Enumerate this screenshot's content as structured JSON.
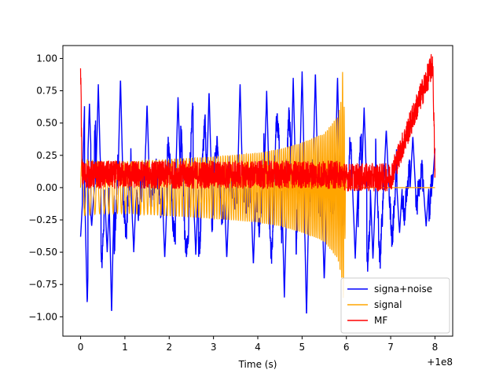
{
  "chart_data": {
    "type": "line",
    "title": "",
    "xlabel": "Time (s)",
    "ylabel": "",
    "x_offset_text": "+1e8",
    "xlim": [
      -0.4,
      8.4
    ],
    "ylim": [
      -1.15,
      1.1
    ],
    "xticks": [
      0,
      1,
      2,
      3,
      4,
      5,
      6,
      7,
      8
    ],
    "xtick_labels": [
      "0",
      "1",
      "2",
      "3",
      "4",
      "5",
      "6",
      "7",
      "8"
    ],
    "yticks": [
      -1.0,
      -0.75,
      -0.5,
      -0.25,
      0.0,
      0.25,
      0.5,
      0.75,
      1.0
    ],
    "ytick_labels": [
      "−1.00",
      "−0.75",
      "−0.50",
      "−0.25",
      "0.00",
      "0.25",
      "0.50",
      "0.75",
      "1.00"
    ],
    "legend": {
      "position": "lower-right"
    },
    "series": [
      {
        "name": "signa+noise",
        "color": "#0000ff",
        "description_points": {
          "x": [
            0.0,
            0.1,
            0.15,
            0.2,
            0.25,
            0.4,
            0.6,
            0.7,
            0.9,
            1.2,
            1.5,
            1.9,
            2.2,
            2.6,
            2.9,
            3.3,
            3.6,
            3.9,
            4.2,
            4.6,
            4.8,
            5.0,
            5.1,
            5.3,
            5.5,
            5.8,
            6.0,
            6.2,
            6.4,
            6.6,
            6.9,
            7.2,
            7.5,
            7.8,
            8.0
          ],
          "y": [
            -0.38,
            0.8,
            -0.9,
            0.65,
            -0.3,
            0.8,
            -0.5,
            -0.98,
            0.85,
            -0.5,
            0.65,
            -0.55,
            0.7,
            -0.52,
            0.75,
            -0.55,
            0.8,
            -0.6,
            0.75,
            -0.85,
            0.85,
            0.9,
            -1.0,
            0.9,
            -0.72,
            0.85,
            0.1,
            -0.55,
            0.62,
            -0.55,
            0.45,
            -0.35,
            0.4,
            -0.3,
            0.3
          ]
        }
      },
      {
        "name": "signal",
        "color": "#ffa500",
        "envelope": {
          "x": [
            0.0,
            0.5,
            1.0,
            2.0,
            3.0,
            4.0,
            4.5,
            5.0,
            5.5,
            5.8,
            5.9,
            5.92,
            6.0,
            8.0
          ],
          "y_abs": [
            0.22,
            0.2,
            0.2,
            0.22,
            0.24,
            0.27,
            0.3,
            0.35,
            0.42,
            0.55,
            0.72,
            1.0,
            0.0,
            0.0
          ]
        }
      },
      {
        "name": "MF",
        "color": "#ff0000",
        "description_points": {
          "x": [
            0.0,
            0.03,
            0.2,
            1.0,
            2.0,
            3.0,
            4.0,
            5.0,
            5.9,
            6.0,
            7.0,
            7.95,
            8.0
          ],
          "y": [
            1.0,
            0.1,
            0.1,
            0.1,
            0.1,
            0.1,
            0.1,
            0.1,
            0.1,
            0.08,
            0.08,
            0.96,
            0.1
          ]
        }
      }
    ]
  }
}
